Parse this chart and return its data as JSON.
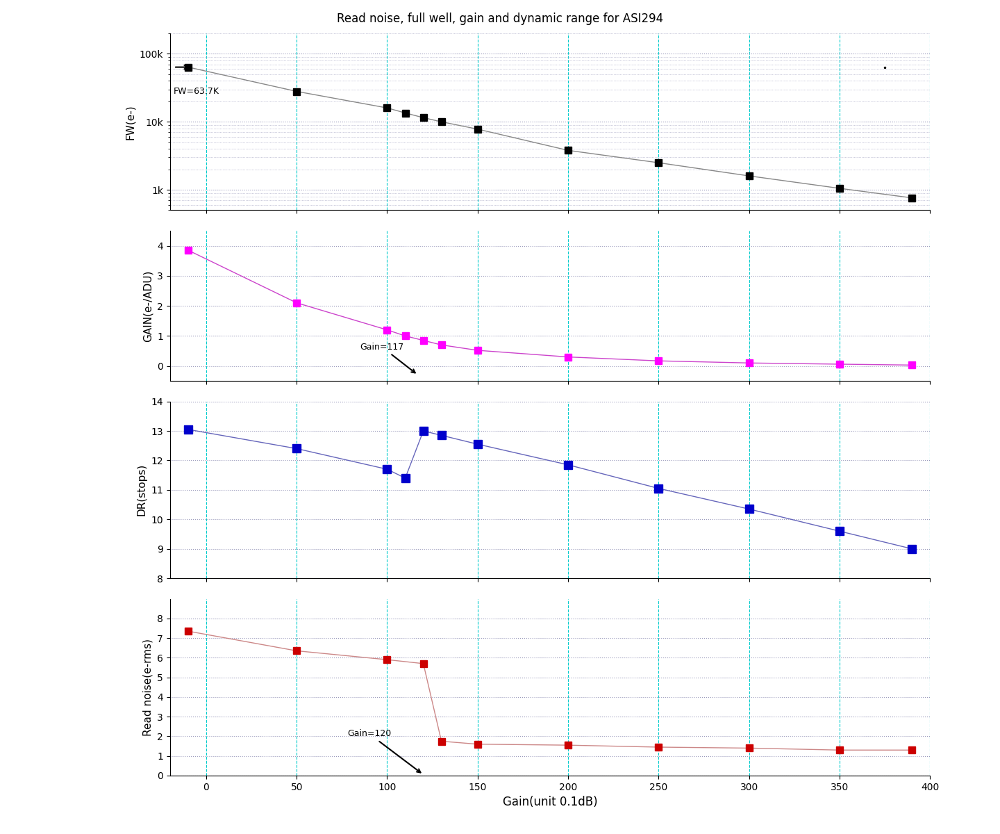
{
  "title": "Read noise, full well, gain and dynamic range for ASI294",
  "xlabel": "Gain(unit 0.1dB)",
  "fw_ylabel": "FW(e-)",
  "gain_ylabel": "GAIN(e-/ADU)",
  "dr_ylabel": "DR(stops)",
  "rn_ylabel": "Read noise(e-rms)",
  "fw_x": [
    -10,
    50,
    100,
    110,
    120,
    130,
    150,
    200,
    250,
    300,
    350,
    390
  ],
  "fw_y": [
    63700,
    28000,
    16000,
    13500,
    11500,
    10000,
    7800,
    3800,
    2500,
    1600,
    1050,
    760
  ],
  "gain_x": [
    -10,
    50,
    100,
    110,
    120,
    130,
    150,
    200,
    250,
    300,
    350,
    390
  ],
  "gain_y": [
    3.85,
    2.1,
    1.2,
    1.0,
    0.85,
    0.7,
    0.52,
    0.3,
    0.17,
    0.1,
    0.06,
    0.03
  ],
  "dr_x": [
    -10,
    50,
    100,
    110,
    120,
    130,
    150,
    200,
    250,
    300,
    350,
    390
  ],
  "dr_y": [
    13.05,
    12.4,
    11.7,
    11.4,
    13.0,
    12.85,
    12.55,
    11.85,
    11.05,
    10.35,
    9.6,
    9.0
  ],
  "rn_x": [
    -10,
    50,
    100,
    120,
    130,
    150,
    200,
    250,
    300,
    350,
    390
  ],
  "rn_y": [
    7.35,
    6.35,
    5.9,
    5.7,
    1.75,
    1.6,
    1.55,
    1.45,
    1.4,
    1.3,
    1.3
  ],
  "fw_color": "#000000",
  "line_color_fw": "#888888",
  "gain_color": "#FF00FF",
  "dr_color": "#0000CC",
  "rn_color": "#CC0000",
  "line_color_gain": "#CC44CC",
  "line_color_dr": "#6666BB",
  "line_color_rn": "#CC8888",
  "grid_cyan": "#00CCCC",
  "grid_dotted": "#9999BB",
  "background_color": "#FFFFFF",
  "fw_annotation": "FW=63.7K",
  "gain_annotation": "Gain=117",
  "rn_annotation": "Gain=120",
  "xlim": [
    -20,
    400
  ],
  "xticks": [
    0,
    50,
    100,
    150,
    200,
    250,
    300,
    350,
    400
  ]
}
